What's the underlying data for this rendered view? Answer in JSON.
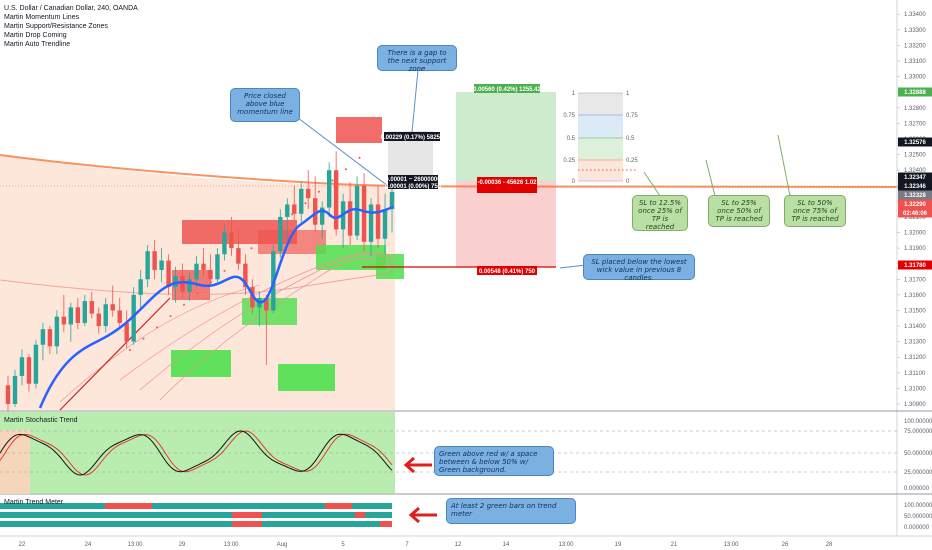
{
  "header": {
    "symbol_line": "U.S. Dollar / Canadian Dollar, 240, OANDA",
    "indicators": [
      "Martin Momentum Lines",
      "Martin Support/Resistance Zones",
      "Martin Drop Coming",
      "Martin Auto Trendline"
    ]
  },
  "panels": {
    "stochastic_title": "Martin Stochastic Trend",
    "trend_meter_title": "Martin Trend Meter"
  },
  "callouts": {
    "gap": "There is a gap to the next support zone",
    "momentum": "Price closed above blue momentum line",
    "sl_wick": "SL placed below the lowest wick value in previous 8 candles.",
    "tp1": "SL to 12.5% once 25% of TP is reached",
    "tp2": "SL to 25% once 50% of TP is reached",
    "tp3": "SL to 50% once 75% of TP is reached",
    "stoch": "Green above red w/ a space between & below 50% w/ Green background.",
    "meter": "At least 2 green bars on trend meter"
  },
  "position_labels": {
    "target": "0.00560 (0.42%) 1255.42",
    "entry": "-0.00036 - 45626 1.02",
    "stop": "0.00548 (0.41%) 750",
    "small_target": "0.00229 (0.17%) 58250",
    "small_entry_a": "0.00001 ~ 26000000",
    "small_entry_b": "0.00001 (0.00%) 750"
  },
  "fib_levels": [
    {
      "level": "1",
      "ratio": 1
    },
    {
      "level": "0.75",
      "ratio": 0.75
    },
    {
      "level": "0.5",
      "ratio": 0.5
    },
    {
      "level": "0.25",
      "ratio": 0.25
    },
    {
      "level": "0",
      "ratio": 0
    }
  ],
  "colors": {
    "up": "#26a69a",
    "down": "#ef5350",
    "momentum": "#2962ff",
    "bg_green": "#9be58f",
    "bg_salmon": "#fcd3bd",
    "ma_orange": "#f5793a",
    "arrow": "#e01f1f"
  },
  "chart_data": {
    "type": "candlestick",
    "symbol": "USDCAD",
    "timeframe": "240",
    "y_range": [
      1.309,
      1.3344
    ],
    "y_ticks": [
      1.309,
      1.31,
      1.311,
      1.312,
      1.313,
      1.314,
      1.315,
      1.316,
      1.317,
      1.318,
      1.319,
      1.32,
      1.321,
      1.322,
      1.323,
      1.324,
      1.325,
      1.326,
      1.327,
      1.328,
      1.329,
      1.33,
      1.331,
      1.332,
      1.333,
      1.334
    ],
    "price_tags": [
      {
        "value": "1.32888",
        "color": "#4caf50"
      },
      {
        "value": "1.32576",
        "color": "#131722"
      },
      {
        "value": "1.32347",
        "color": "#131722"
      },
      {
        "value": "1.32346",
        "color": "#131722"
      },
      {
        "value": "1.32328",
        "color": "#787b86"
      },
      {
        "value": "1.32290",
        "color": "#ef5350"
      },
      {
        "value": "02:46:06",
        "color": "#ef5350"
      },
      {
        "value": "1.31780",
        "color": "#e00000"
      }
    ],
    "x_ticks": [
      "22",
      "24",
      "13:00",
      "29",
      "13:00",
      "Aug",
      "5",
      "7",
      "12",
      "14",
      "13:00",
      "19",
      "21",
      "13:00",
      "26",
      "28"
    ],
    "candles": [
      [
        1.3102,
        1.3108,
        1.3085,
        1.309
      ],
      [
        1.309,
        1.3112,
        1.3088,
        1.3108
      ],
      [
        1.3108,
        1.3125,
        1.3102,
        1.312
      ],
      [
        1.312,
        1.3122,
        1.3098,
        1.3103
      ],
      [
        1.3103,
        1.3131,
        1.31,
        1.3128
      ],
      [
        1.3128,
        1.3142,
        1.3118,
        1.3138
      ],
      [
        1.3138,
        1.314,
        1.3122,
        1.3127
      ],
      [
        1.3127,
        1.315,
        1.3122,
        1.3146
      ],
      [
        1.3146,
        1.316,
        1.3136,
        1.3141
      ],
      [
        1.3141,
        1.3155,
        1.313,
        1.3152
      ],
      [
        1.3152,
        1.3158,
        1.3138,
        1.3142
      ],
      [
        1.3142,
        1.316,
        1.314,
        1.3156
      ],
      [
        1.3156,
        1.3162,
        1.3145,
        1.3148
      ],
      [
        1.3148,
        1.3152,
        1.3135,
        1.314
      ],
      [
        1.314,
        1.3158,
        1.3136,
        1.3154
      ],
      [
        1.3154,
        1.3166,
        1.3146,
        1.315
      ],
      [
        1.315,
        1.3158,
        1.3138,
        1.3142
      ],
      [
        1.3142,
        1.315,
        1.3126,
        1.313
      ],
      [
        1.313,
        1.3165,
        1.3128,
        1.316
      ],
      [
        1.316,
        1.3176,
        1.315,
        1.317
      ],
      [
        1.317,
        1.3192,
        1.3165,
        1.3188
      ],
      [
        1.3188,
        1.3195,
        1.317,
        1.3176
      ],
      [
        1.3176,
        1.319,
        1.3168,
        1.3182
      ],
      [
        1.3182,
        1.3186,
        1.316,
        1.3165
      ],
      [
        1.3165,
        1.3178,
        1.3155,
        1.3172
      ],
      [
        1.3172,
        1.318,
        1.3158,
        1.3162
      ],
      [
        1.3162,
        1.3175,
        1.3156,
        1.317
      ],
      [
        1.317,
        1.3185,
        1.3165,
        1.318
      ],
      [
        1.318,
        1.319,
        1.3172,
        1.3176
      ],
      [
        1.3176,
        1.3186,
        1.3166,
        1.317
      ],
      [
        1.317,
        1.319,
        1.3168,
        1.3186
      ],
      [
        1.3186,
        1.3205,
        1.3182,
        1.32
      ],
      [
        1.32,
        1.321,
        1.3185,
        1.319
      ],
      [
        1.319,
        1.3202,
        1.3176,
        1.318
      ],
      [
        1.318,
        1.3186,
        1.316,
        1.3165
      ],
      [
        1.3165,
        1.317,
        1.3148,
        1.3152
      ],
      [
        1.3152,
        1.3162,
        1.314,
        1.3158
      ],
      [
        1.3158,
        1.316,
        1.3115,
        1.315
      ],
      [
        1.315,
        1.3192,
        1.3148,
        1.3188
      ],
      [
        1.3188,
        1.3215,
        1.3184,
        1.321
      ],
      [
        1.321,
        1.3222,
        1.3195,
        1.3218
      ],
      [
        1.3218,
        1.323,
        1.3208,
        1.3212
      ],
      [
        1.3212,
        1.3232,
        1.3205,
        1.3228
      ],
      [
        1.3228,
        1.324,
        1.3215,
        1.3222
      ],
      [
        1.3222,
        1.3236,
        1.32,
        1.3205
      ],
      [
        1.3205,
        1.322,
        1.3196,
        1.3216
      ],
      [
        1.3216,
        1.3245,
        1.321,
        1.324
      ],
      [
        1.324,
        1.3252,
        1.3198,
        1.3202
      ],
      [
        1.3202,
        1.3225,
        1.319,
        1.322
      ],
      [
        1.322,
        1.3232,
        1.3192,
        1.3198
      ],
      [
        1.3198,
        1.3236,
        1.3195,
        1.323
      ],
      [
        1.323,
        1.3238,
        1.3188,
        1.3194
      ],
      [
        1.3194,
        1.3222,
        1.3185,
        1.3218
      ],
      [
        1.3218,
        1.323,
        1.319,
        1.3196
      ],
      [
        1.3196,
        1.3225,
        1.3186,
        1.3215
      ],
      [
        1.3215,
        1.3228,
        1.32,
        1.3226
      ]
    ]
  }
}
